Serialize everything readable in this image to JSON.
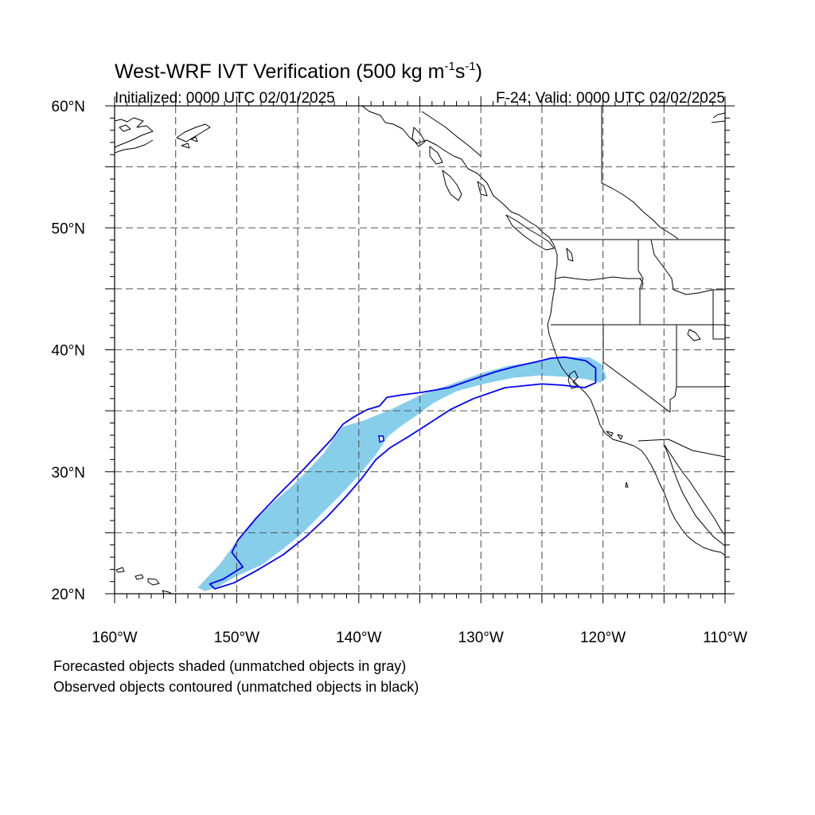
{
  "title": {
    "main": "West-WRF IVT Verification (500 kg m",
    "sup1": "-1",
    "mid": "s",
    "sup2": "-1",
    "close": ")"
  },
  "subtitle": {
    "left": "Initialized: 0000 UTC 02/01/2025",
    "right": "F-24: Valid: 0000 UTC 02/02/2025"
  },
  "map": {
    "lon_range": [
      -160,
      -110
    ],
    "lat_range": [
      20,
      60
    ],
    "grid_spacing_deg": 5,
    "x_labels": [
      {
        "lon": -160,
        "text": "160°W"
      },
      {
        "lon": -150,
        "text": "150°W"
      },
      {
        "lon": -140,
        "text": "140°W"
      },
      {
        "lon": -130,
        "text": "130°W"
      },
      {
        "lon": -120,
        "text": "120°W"
      },
      {
        "lon": -110,
        "text": "110°W"
      }
    ],
    "y_labels": [
      {
        "lat": 60,
        "text": "60°N"
      },
      {
        "lat": 50,
        "text": "50°N"
      },
      {
        "lat": 40,
        "text": "40°N"
      },
      {
        "lat": 30,
        "text": "30°N"
      },
      {
        "lat": 20,
        "text": "20°N"
      }
    ],
    "colors": {
      "forecast_fill": "#87ceeb",
      "observed_contour": "#0000ff",
      "coast": "#000000",
      "grid": "#555555"
    }
  },
  "forecast_object": [
    [
      -152.6,
      20.2
    ],
    [
      -151.5,
      20.6
    ],
    [
      -150.1,
      21.4
    ],
    [
      -147.9,
      22.4
    ],
    [
      -146.3,
      23.6
    ],
    [
      -144.7,
      24.9
    ],
    [
      -143.1,
      26.5
    ],
    [
      -141.6,
      28.0
    ],
    [
      -140.1,
      29.6
    ],
    [
      -138.6,
      31.4
    ],
    [
      -137.6,
      32.9
    ],
    [
      -136.6,
      33.7
    ],
    [
      -135.3,
      34.6
    ],
    [
      -133.8,
      35.7
    ],
    [
      -132.0,
      36.6
    ],
    [
      -129.8,
      37.2
    ],
    [
      -127.4,
      37.7
    ],
    [
      -125.2,
      37.9
    ],
    [
      -123.3,
      37.8
    ],
    [
      -121.4,
      37.6
    ],
    [
      -120.2,
      37.3
    ],
    [
      -119.7,
      37.7
    ],
    [
      -120.1,
      38.8
    ],
    [
      -121.1,
      39.4
    ],
    [
      -123.0,
      39.4
    ],
    [
      -124.5,
      39.2
    ],
    [
      -126.0,
      38.9
    ],
    [
      -127.7,
      38.7
    ],
    [
      -129.9,
      38.1
    ],
    [
      -132.1,
      37.3
    ],
    [
      -134.7,
      36.4
    ],
    [
      -137.4,
      35.1
    ],
    [
      -139.6,
      34.2
    ],
    [
      -141.3,
      33.7
    ],
    [
      -142.0,
      32.8
    ],
    [
      -142.8,
      31.6
    ],
    [
      -144.1,
      30.2
    ],
    [
      -145.5,
      28.8
    ],
    [
      -147.0,
      27.5
    ],
    [
      -148.4,
      26.1
    ],
    [
      -149.8,
      24.6
    ],
    [
      -151.4,
      22.4
    ],
    [
      -153.2,
      20.5
    ]
  ],
  "observed_object": [
    [
      -151.8,
      20.4
    ],
    [
      -150.2,
      20.9
    ],
    [
      -148.2,
      22.0
    ],
    [
      -146.2,
      23.2
    ],
    [
      -144.3,
      24.7
    ],
    [
      -142.6,
      26.3
    ],
    [
      -141.1,
      27.9
    ],
    [
      -139.8,
      29.4
    ],
    [
      -138.6,
      31.0
    ],
    [
      -137.4,
      32.0
    ],
    [
      -135.9,
      32.9
    ],
    [
      -134.2,
      34.0
    ],
    [
      -132.5,
      35.1
    ],
    [
      -130.6,
      36.0
    ],
    [
      -128.0,
      36.9
    ],
    [
      -125.0,
      37.2
    ],
    [
      -123.4,
      37.1
    ],
    [
      -121.5,
      36.9
    ],
    [
      -120.6,
      37.3
    ],
    [
      -120.6,
      38.5
    ],
    [
      -121.4,
      39.1
    ],
    [
      -123.1,
      39.4
    ],
    [
      -124.3,
      39.3
    ],
    [
      -125.5,
      39.0
    ],
    [
      -126.9,
      38.7
    ],
    [
      -128.8,
      38.2
    ],
    [
      -130.6,
      37.6
    ],
    [
      -132.6,
      36.9
    ],
    [
      -134.9,
      36.5
    ],
    [
      -136.5,
      36.3
    ],
    [
      -137.7,
      36.1
    ],
    [
      -138.3,
      35.4
    ],
    [
      -139.3,
      35.1
    ],
    [
      -140.4,
      34.5
    ],
    [
      -141.3,
      33.9
    ],
    [
      -142.2,
      32.7
    ],
    [
      -143.4,
      31.4
    ],
    [
      -144.9,
      29.8
    ],
    [
      -146.6,
      28.1
    ],
    [
      -148.4,
      26.2
    ],
    [
      -149.9,
      24.4
    ],
    [
      -150.4,
      23.4
    ],
    [
      -149.5,
      22.2
    ],
    [
      -151.1,
      21.2
    ],
    [
      -152.2,
      20.8
    ]
  ],
  "footnotes": {
    "line1": "Forecasted objects shaded (unmatched objects in gray)",
    "line2": "Observed objects contoured (unmatched objects in black)"
  }
}
